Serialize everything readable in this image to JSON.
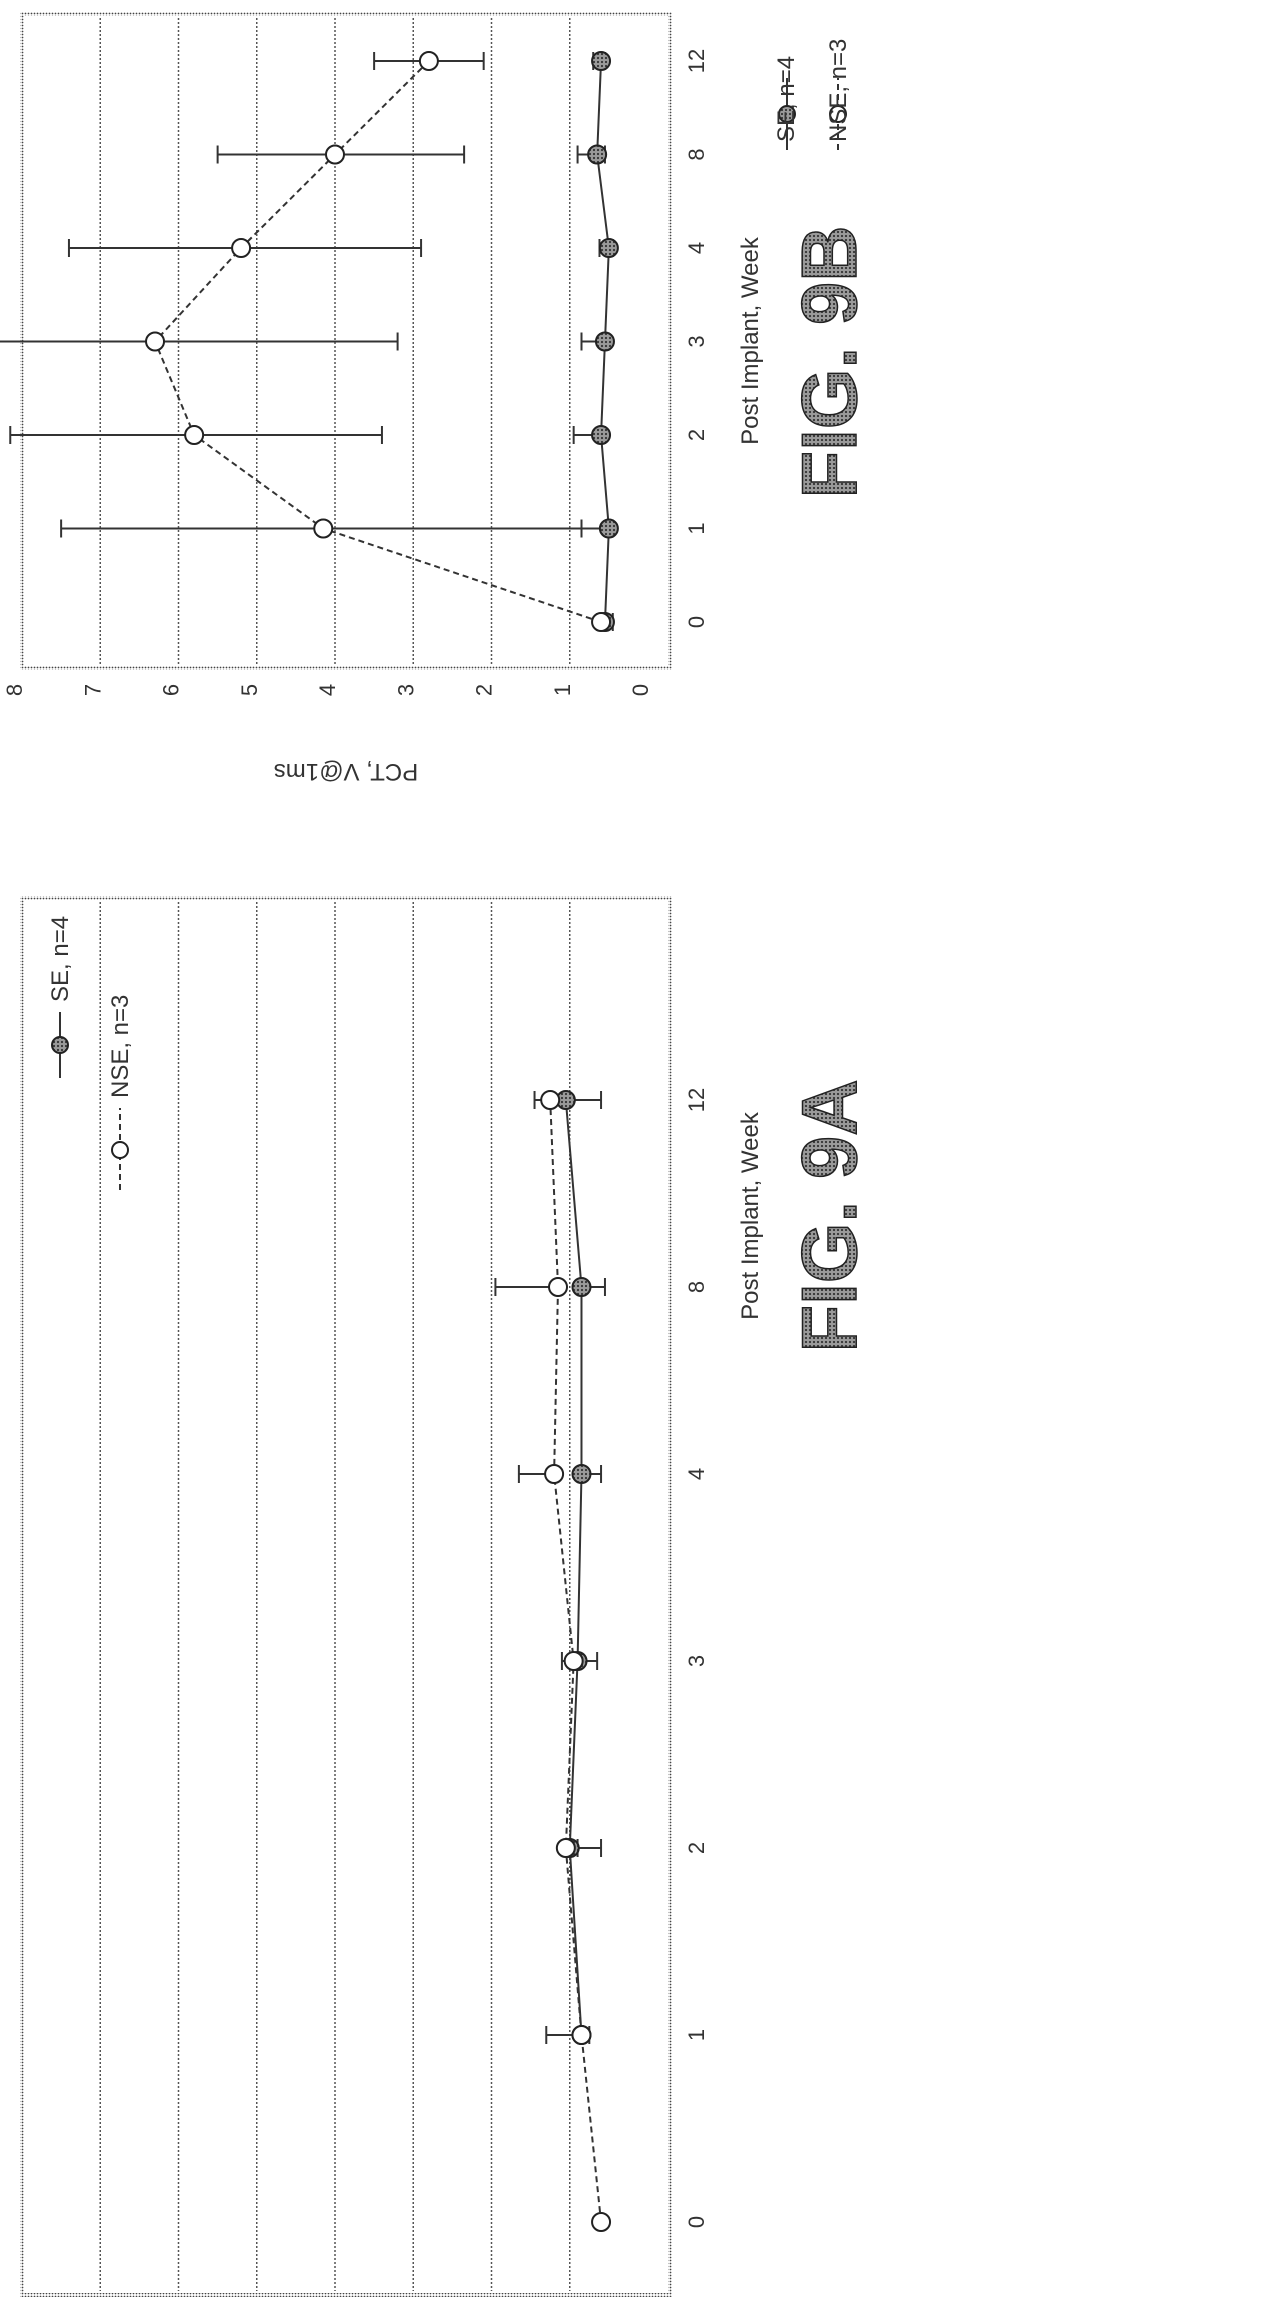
{
  "chart_data": [
    {
      "type": "line",
      "figure_label": "FIG. 9B",
      "xlabel": "Post Implant, Week",
      "ylabel": "PCT, V@1ms",
      "x": [
        0,
        1,
        2,
        3,
        4,
        8,
        12
      ],
      "x_tick_labels": [
        "0",
        "1",
        "2",
        "3",
        "4",
        "8",
        "12"
      ],
      "ylim": [
        0,
        8
      ],
      "y_ticks": [
        0,
        1,
        2,
        3,
        4,
        5,
        6,
        7,
        8
      ],
      "y_tick_labels": [
        "0",
        "1",
        "2",
        "3",
        "4",
        "5",
        "6",
        "7",
        "8"
      ],
      "grid": true,
      "legend_position": "top-right",
      "series": [
        {
          "name": "SE, n=4",
          "marker": "filled-circle",
          "line": "solid",
          "values": [
            0.55,
            0.5,
            0.6,
            0.55,
            0.5,
            0.65,
            0.6
          ],
          "err_upper": [
            0.1,
            0.35,
            0.35,
            0.3,
            0.12,
            0.25,
            0.1
          ],
          "err_lower": [
            0.1,
            0.05,
            0.05,
            0.05,
            0.05,
            0.1,
            0.05
          ]
        },
        {
          "name": "NSE, n=3",
          "marker": "open-circle",
          "line": "dashed",
          "values": [
            0.6,
            4.15,
            5.8,
            6.3,
            5.2,
            4.0,
            2.8
          ],
          "err_upper": [
            0.0,
            3.35,
            2.35,
            2.1,
            2.2,
            1.5,
            0.7
          ],
          "err_lower": [
            0.0,
            3.3,
            2.4,
            3.1,
            2.3,
            1.65,
            0.7
          ]
        }
      ]
    },
    {
      "type": "line",
      "figure_label": "FIG. 9A",
      "xlabel": "Post Implant, Week",
      "ylabel": "",
      "x": [
        0,
        1,
        2,
        3,
        4,
        8,
        12
      ],
      "x_tick_labels": [
        "0",
        "1",
        "2",
        "3",
        "4",
        "8",
        "12"
      ],
      "ylim": [
        0,
        8
      ],
      "grid": true,
      "legend_position": "top-right",
      "series": [
        {
          "name": "SE, n=4",
          "marker": "filled-circle",
          "line": "solid",
          "x": [
            1,
            2,
            3,
            4,
            8,
            12
          ],
          "values": [
            0.85,
            1.0,
            0.9,
            0.85,
            0.85,
            1.05
          ],
          "err_upper": [
            0.0,
            0.0,
            0.0,
            0.0,
            0.0,
            0.0
          ],
          "err_lower": [
            0.1,
            0.1,
            0.25,
            0.25,
            0.3,
            0.45
          ]
        },
        {
          "name": "NSE, n=3",
          "marker": "open-circle",
          "line": "dashed",
          "values": [
            0.6,
            0.85,
            1.05,
            0.95,
            1.2,
            1.15,
            1.25
          ],
          "err_upper": [
            0.0,
            0.45,
            0.0,
            0.15,
            0.45,
            0.8,
            0.2
          ],
          "err_lower": [
            0.0,
            0.0,
            0.45,
            0.0,
            0.0,
            0.0,
            0.0
          ]
        }
      ]
    }
  ]
}
